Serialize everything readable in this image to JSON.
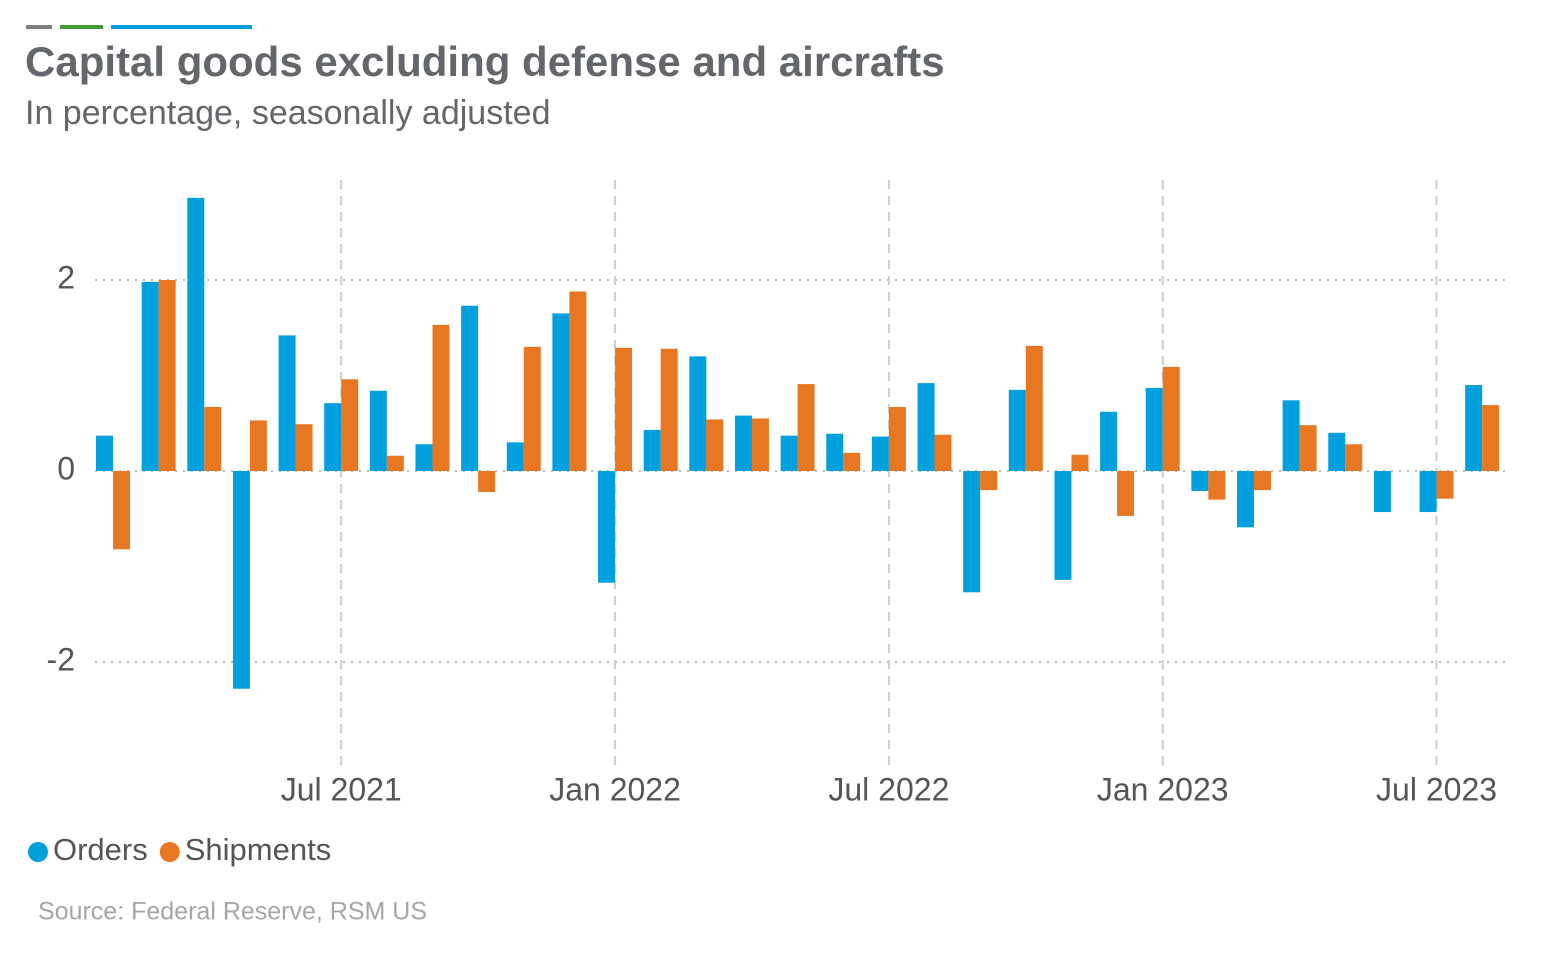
{
  "chart_data": {
    "type": "bar",
    "title": "Capital goods excluding defense and aircrafts",
    "subtitle": "In percentage, seasonally adjusted",
    "source": "Source: Federal Reserve, RSM US",
    "categories": [
      null,
      null,
      null,
      null,
      null,
      "Jul 2021",
      null,
      null,
      null,
      null,
      null,
      "Jan 2022",
      null,
      null,
      null,
      null,
      null,
      "Jul 2022",
      null,
      null,
      null,
      null,
      null,
      "Jan 2023",
      null,
      null,
      null,
      null,
      null,
      "Jul 2023",
      null
    ],
    "series": [
      {
        "name": "Orders",
        "color": "#009fde",
        "values": [
          0.37,
          1.98,
          2.86,
          -2.28,
          1.42,
          0.71,
          0.84,
          0.28,
          1.73,
          0.3,
          1.65,
          -1.17,
          0.43,
          1.2,
          0.58,
          0.37,
          0.39,
          0.36,
          0.92,
          -1.27,
          0.85,
          -1.14,
          0.62,
          0.87,
          -0.21,
          -0.59,
          0.74,
          0.4,
          -0.43,
          -0.43,
          0.9
        ]
      },
      {
        "name": "Shipments",
        "color": "#e87722",
        "values": [
          -0.82,
          2.0,
          0.67,
          0.53,
          0.49,
          0.96,
          0.16,
          1.53,
          -0.22,
          1.3,
          1.88,
          1.29,
          1.28,
          0.54,
          0.55,
          0.91,
          0.19,
          0.67,
          0.38,
          -0.2,
          1.31,
          0.17,
          -0.47,
          1.09,
          -0.3,
          -0.2,
          0.48,
          0.28,
          0,
          -0.29,
          0.69
        ]
      }
    ],
    "ylim": [
      -3,
      3
    ],
    "yticks": [
      -2,
      0,
      2
    ],
    "grid": true,
    "legend": "bottom-left"
  }
}
